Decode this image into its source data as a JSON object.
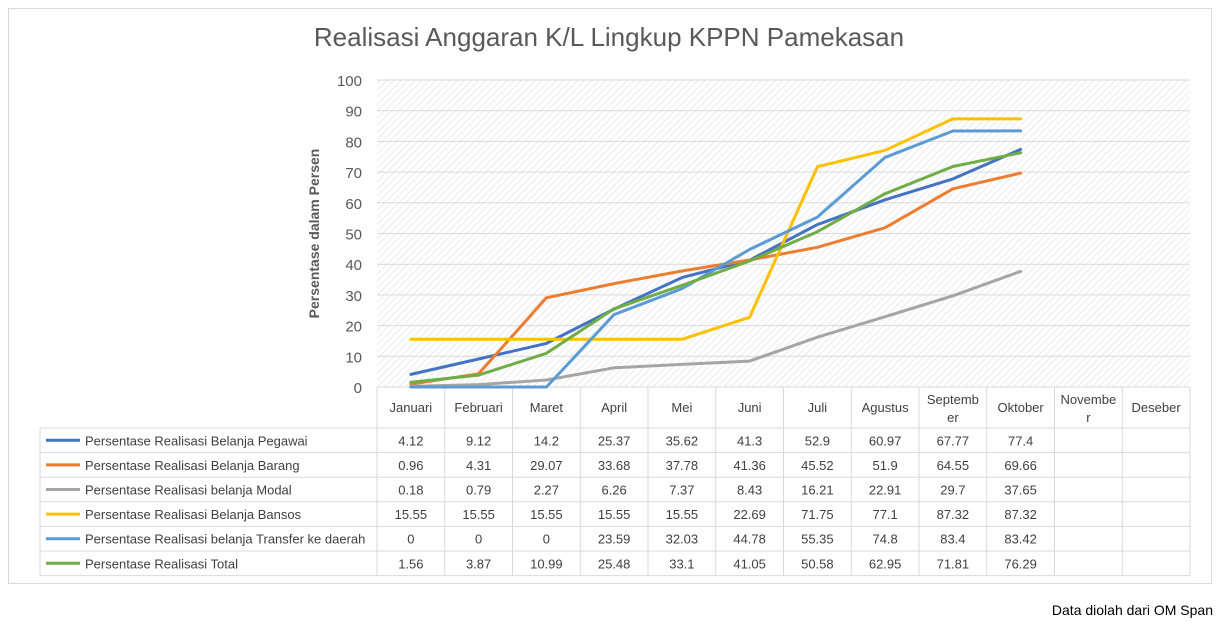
{
  "source_note": "Data diolah dari OM Span",
  "chart_data": {
    "type": "line",
    "title": "Realisasi Anggaran K/L Lingkup KPPN Pamekasan",
    "ylabel": "Persentase dalam Persen",
    "xlabel": "",
    "ylim": [
      0,
      100
    ],
    "yticks": [
      0,
      10,
      20,
      30,
      40,
      50,
      60,
      70,
      80,
      90,
      100
    ],
    "grid": true,
    "legend": "data-table",
    "categories": [
      "Januari",
      "Februari",
      "Maret",
      "April",
      "Mei",
      "Juni",
      "Juli",
      "Agustus",
      "Septemb er",
      "Oktober",
      "Novembe r",
      "Deseber"
    ],
    "series": [
      {
        "name": "Persentase Realisasi Belanja Pegawai",
        "color": "#4472c4",
        "values": [
          4.12,
          9.12,
          14.2,
          25.37,
          35.62,
          41.3,
          52.9,
          60.97,
          67.77,
          77.4,
          null,
          null
        ]
      },
      {
        "name": "Persentase Realisasi Belanja Barang",
        "color": "#ed7d31",
        "values": [
          0.96,
          4.31,
          29.07,
          33.68,
          37.78,
          41.36,
          45.52,
          51.9,
          64.55,
          69.66,
          null,
          null
        ]
      },
      {
        "name": "Persentase Realisasi belanja Modal",
        "color": "#a5a5a5",
        "values": [
          0.18,
          0.79,
          2.27,
          6.26,
          7.37,
          8.43,
          16.21,
          22.91,
          29.7,
          37.65,
          null,
          null
        ]
      },
      {
        "name": "Persentase Realisasi Belanja Bansos",
        "color": "#ffc000",
        "values": [
          15.55,
          15.55,
          15.55,
          15.55,
          15.55,
          22.69,
          71.75,
          77.1,
          87.32,
          87.32,
          null,
          null
        ]
      },
      {
        "name": "Persentase Realisasi belanja Transfer ke daerah",
        "color": "#5b9bd5",
        "values": [
          0,
          0,
          0,
          23.59,
          32.03,
          44.78,
          55.35,
          74.8,
          83.4,
          83.42,
          null,
          null
        ]
      },
      {
        "name": "Persentase Realisasi Total",
        "color": "#70ad47",
        "values": [
          1.56,
          3.87,
          10.99,
          25.48,
          33.1,
          41.05,
          50.58,
          62.95,
          71.81,
          76.29,
          null,
          null
        ]
      }
    ]
  }
}
